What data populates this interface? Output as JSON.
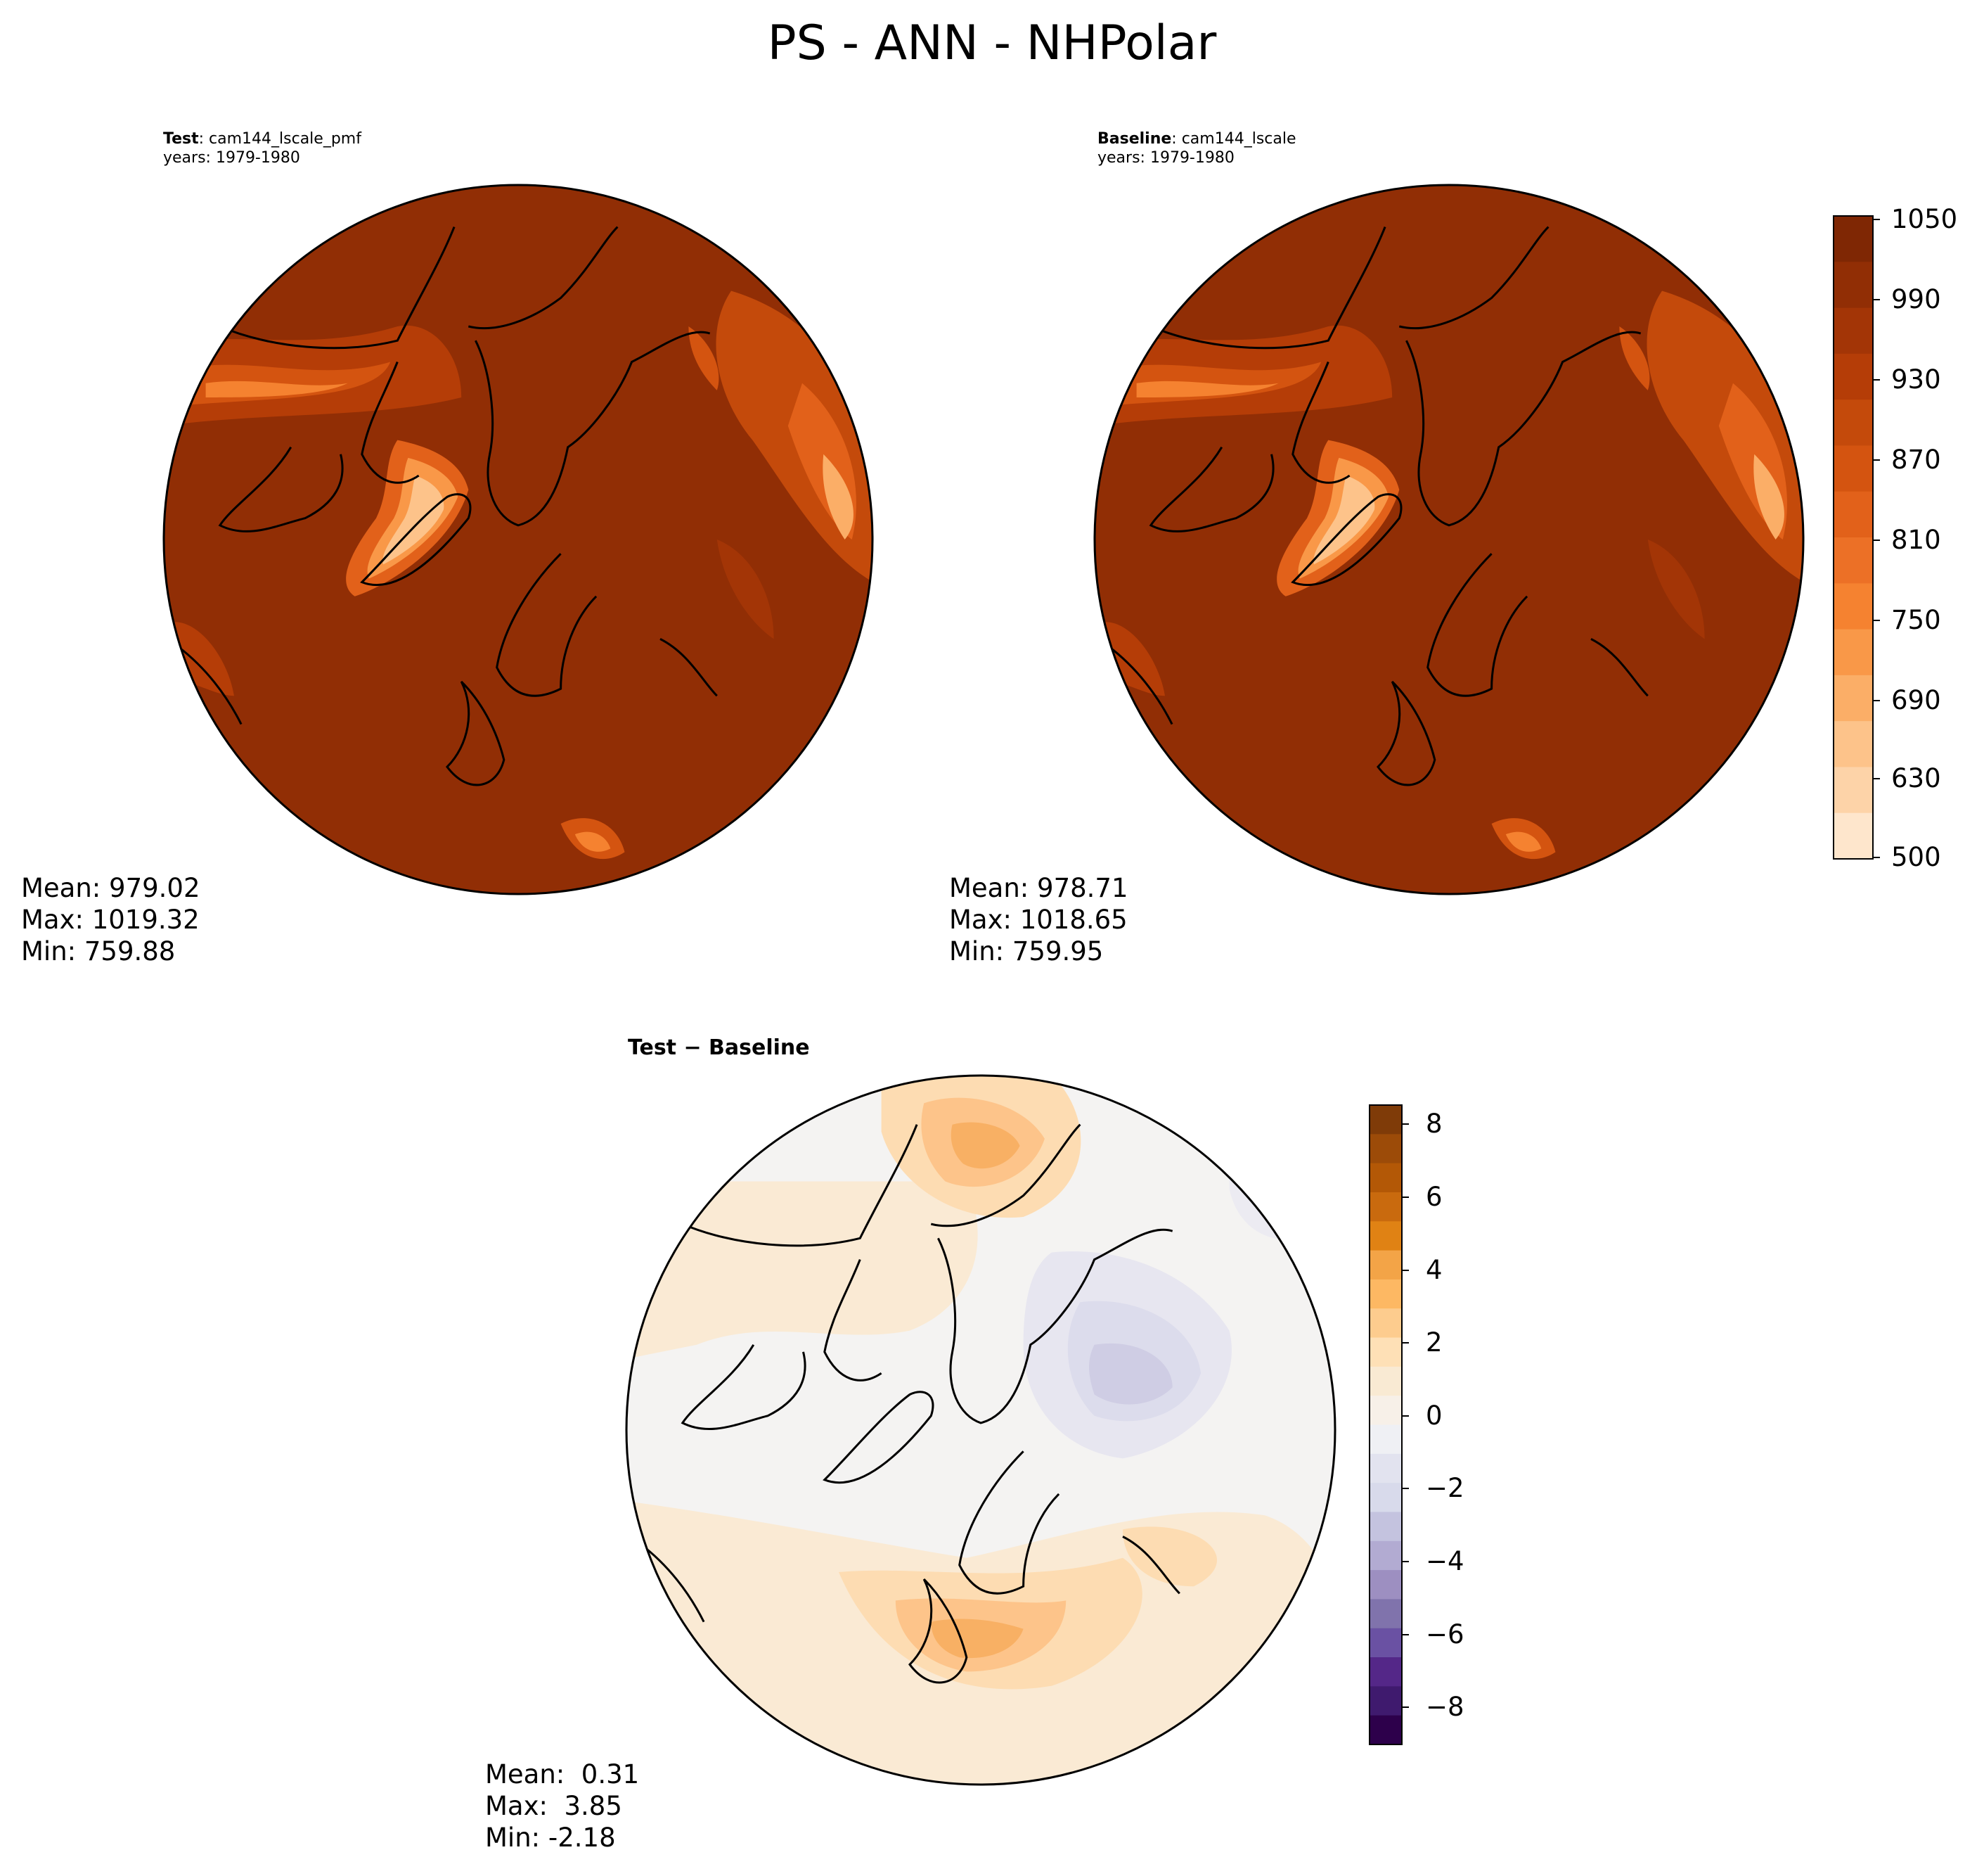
{
  "figure": {
    "title": "PS - ANN - NHPolar"
  },
  "panels": {
    "test": {
      "label_bold": "Test",
      "label_rest": ": cam144_lscale_pmf",
      "years": "years: 1979-1980",
      "mean": "Mean: 979.02",
      "max": "Max: 1019.32",
      "min": "Min: 759.88"
    },
    "baseline": {
      "label_bold": "Baseline",
      "label_rest": ": cam144_lscale",
      "years": "years: 1979-1980",
      "mean": "Mean: 978.71",
      "max": "Max: 1018.65",
      "min": "Min: 759.95"
    },
    "diff": {
      "title": "Test − Baseline",
      "mean": "Mean:  0.31",
      "max": "Max:  3.85",
      "min": "Min: -2.18"
    }
  },
  "colorbars": {
    "main": {
      "ticks": [
        "1050",
        "990",
        "930",
        "870",
        "810",
        "750",
        "690",
        "630",
        "500"
      ],
      "colors": [
        "#7f2704",
        "#912e05",
        "#a33506",
        "#b53d07",
        "#c44a0b",
        "#d45410",
        "#e2611a",
        "#ec7026",
        "#f58230",
        "#f99848",
        "#fbae67",
        "#fdc38a",
        "#fdd3a8",
        "#fee6cc"
      ]
    },
    "diff": {
      "ticks": [
        "8",
        "6",
        "4",
        "2",
        "0",
        "−2",
        "−4",
        "−6",
        "−8"
      ],
      "colors": [
        "#7f3b08",
        "#9c4b08",
        "#b35806",
        "#c96a0e",
        "#e08214",
        "#f3a447",
        "#fdb863",
        "#fdcc8e",
        "#fee0b6",
        "#f9ead3",
        "#f7f0e8",
        "#eff0f4",
        "#e2e3ef",
        "#d8daeb",
        "#c4c3df",
        "#b2abd2",
        "#9d8fc1",
        "#8073ac",
        "#6a51a3",
        "#542788",
        "#3f1a6e",
        "#2d004b"
      ]
    }
  },
  "chart_data": [
    {
      "type": "heatmap",
      "title": "Test: cam144_lscale_pmf",
      "subtitle": "years: 1979-1980",
      "variable": "PS",
      "projection": "North polar stereographic",
      "colormap": "Oranges",
      "color_range": [
        500,
        1050
      ],
      "stats": {
        "mean": 979.02,
        "max": 1019.32,
        "min": 759.88
      }
    },
    {
      "type": "heatmap",
      "title": "Baseline: cam144_lscale",
      "subtitle": "years: 1979-1980",
      "variable": "PS",
      "projection": "North polar stereographic",
      "colormap": "Oranges",
      "color_range": [
        500,
        1050
      ],
      "stats": {
        "mean": 978.71,
        "max": 1018.65,
        "min": 759.95
      }
    },
    {
      "type": "heatmap",
      "title": "Test − Baseline",
      "variable": "PS difference",
      "projection": "North polar stereographic",
      "colormap": "PuOr",
      "color_range": [
        -9,
        8.5
      ],
      "stats": {
        "mean": 0.31,
        "max": 3.85,
        "min": -2.18
      }
    }
  ]
}
